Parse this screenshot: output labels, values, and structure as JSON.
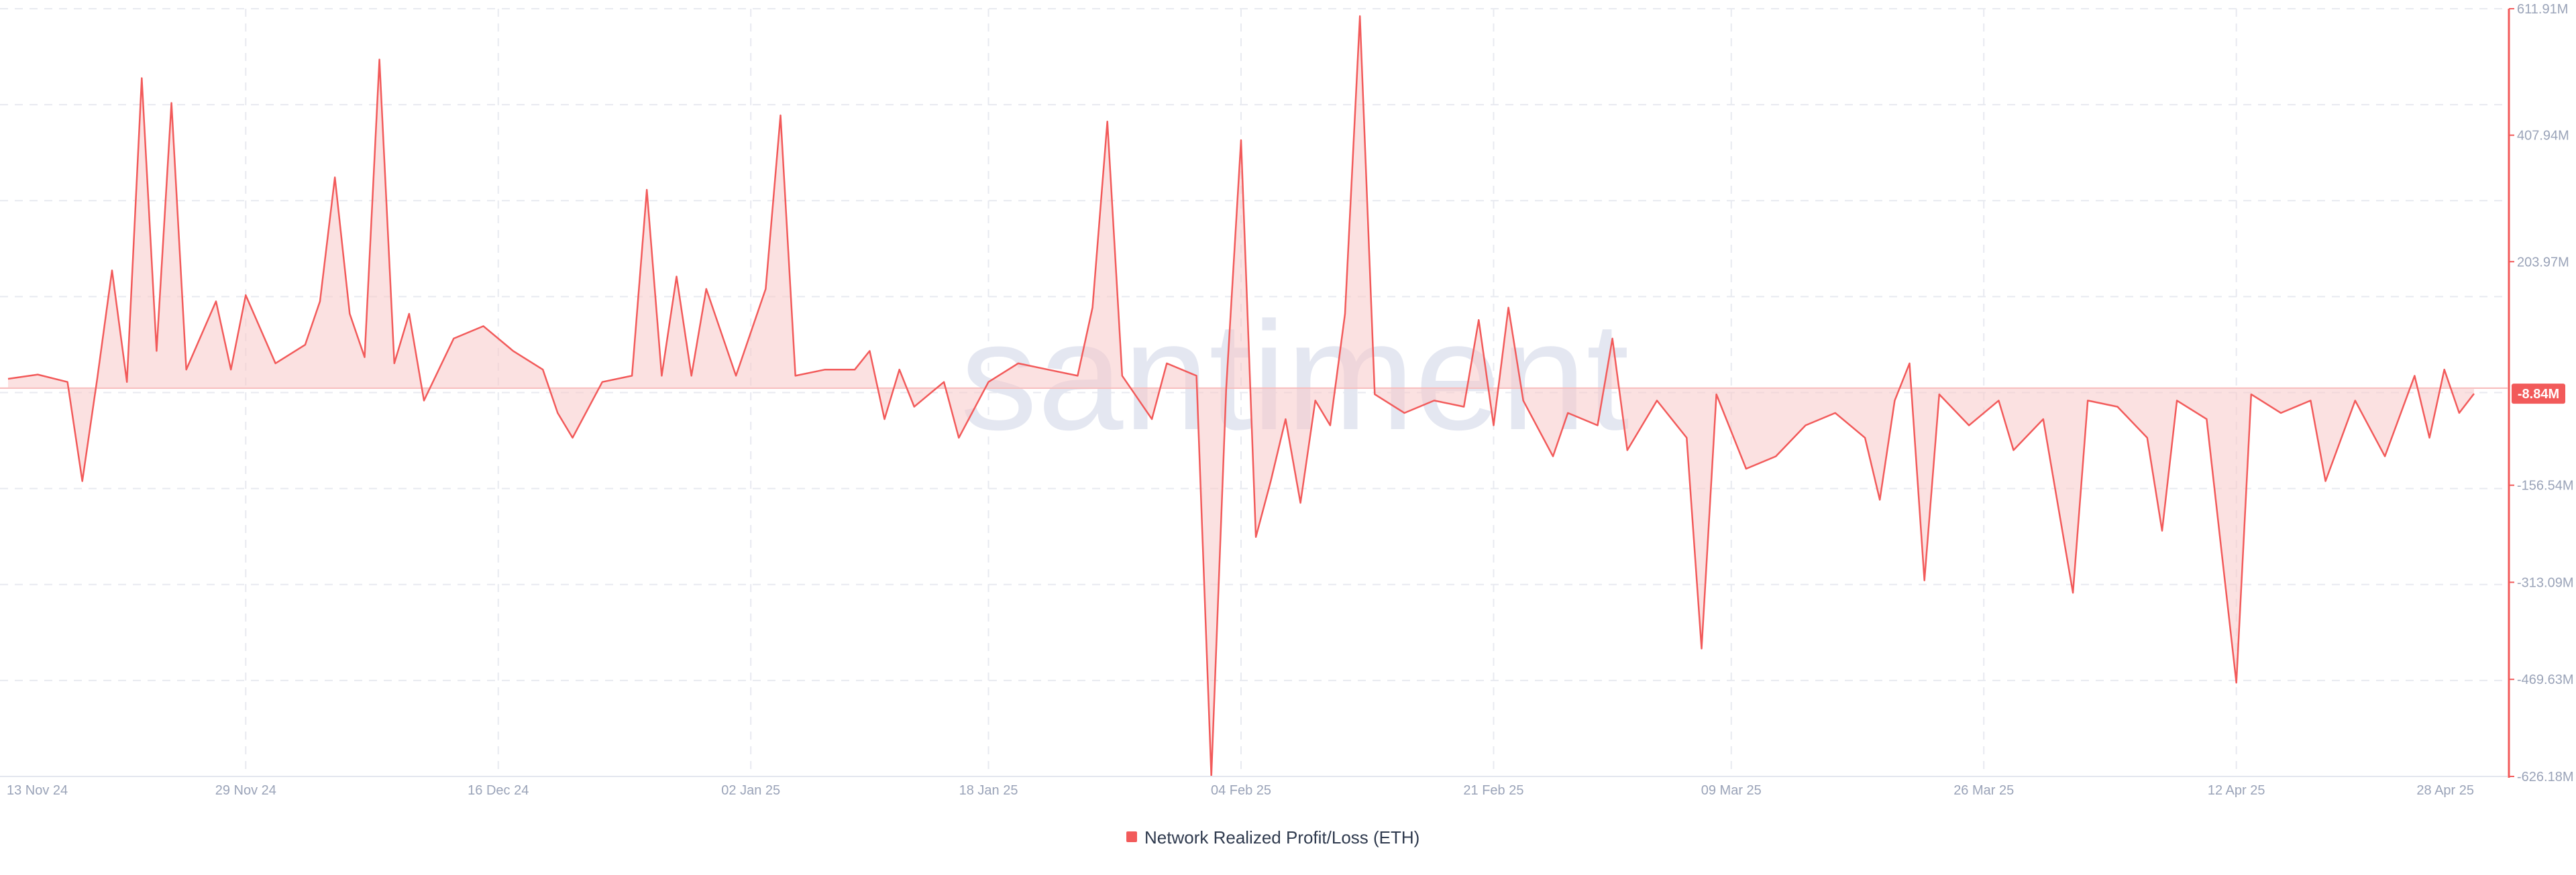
{
  "chart_data": {
    "type": "area",
    "watermark": "santiment",
    "x_range": [
      "2024-11-13",
      "2025-04-28"
    ],
    "x_ticks": [
      "13 Nov 24",
      "29 Nov 24",
      "16 Dec 24",
      "02 Jan 25",
      "18 Jan 25",
      "04 Feb 25",
      "21 Feb 25",
      "09 Mar 25",
      "26 Mar 25",
      "12 Apr 25",
      "28 Apr 25"
    ],
    "y_ticks": [
      "611.91M",
      "407.94M",
      "203.97M",
      "-156.54M",
      "-313.09M",
      "-469.63M",
      "-626.18M"
    ],
    "ylim": [
      -626.18,
      611.91
    ],
    "y_unit": "M",
    "y_axis_side": "right",
    "grid": true,
    "last_value": -8.84,
    "last_value_label": "-8.84M",
    "legend_position": "bottom-center",
    "series": [
      {
        "name": "Network Realized Profit/Loss (ETH)",
        "color": "#f25a5a",
        "fill_color": "#f7c9c9",
        "points": [
          [
            "2024-11-13",
            15
          ],
          [
            "2024-11-15",
            22
          ],
          [
            "2024-11-17",
            10
          ],
          [
            "2024-11-18",
            -150
          ],
          [
            "2024-11-19",
            15
          ],
          [
            "2024-11-20",
            190
          ],
          [
            "2024-11-21",
            10
          ],
          [
            "2024-11-22",
            500
          ],
          [
            "2024-11-23",
            60
          ],
          [
            "2024-11-24",
            460
          ],
          [
            "2024-11-25",
            30
          ],
          [
            "2024-11-27",
            140
          ],
          [
            "2024-11-28",
            30
          ],
          [
            "2024-11-29",
            150
          ],
          [
            "2024-12-01",
            40
          ],
          [
            "2024-12-03",
            70
          ],
          [
            "2024-12-04",
            140
          ],
          [
            "2024-12-05",
            340
          ],
          [
            "2024-12-06",
            120
          ],
          [
            "2024-12-07",
            50
          ],
          [
            "2024-12-08",
            530
          ],
          [
            "2024-12-09",
            40
          ],
          [
            "2024-12-10",
            120
          ],
          [
            "2024-12-11",
            -20
          ],
          [
            "2024-12-13",
            80
          ],
          [
            "2024-12-15",
            100
          ],
          [
            "2024-12-17",
            60
          ],
          [
            "2024-12-19",
            30
          ],
          [
            "2024-12-20",
            -40
          ],
          [
            "2024-12-21",
            -80
          ],
          [
            "2024-12-23",
            10
          ],
          [
            "2024-12-25",
            20
          ],
          [
            "2024-12-26",
            320
          ],
          [
            "2024-12-27",
            20
          ],
          [
            "2024-12-28",
            180
          ],
          [
            "2024-12-29",
            20
          ],
          [
            "2024-12-30",
            160
          ],
          [
            "2025-01-01",
            20
          ],
          [
            "2025-01-02",
            90
          ],
          [
            "2025-01-03",
            160
          ],
          [
            "2025-01-04",
            440
          ],
          [
            "2025-01-05",
            20
          ],
          [
            "2025-01-07",
            30
          ],
          [
            "2025-01-09",
            30
          ],
          [
            "2025-01-10",
            60
          ],
          [
            "2025-01-11",
            -50
          ],
          [
            "2025-01-12",
            30
          ],
          [
            "2025-01-13",
            -30
          ],
          [
            "2025-01-15",
            10
          ],
          [
            "2025-01-16",
            -80
          ],
          [
            "2025-01-18",
            10
          ],
          [
            "2025-01-20",
            40
          ],
          [
            "2025-01-22",
            30
          ],
          [
            "2025-01-24",
            20
          ],
          [
            "2025-01-25",
            130
          ],
          [
            "2025-01-26",
            430
          ],
          [
            "2025-01-27",
            20
          ],
          [
            "2025-01-29",
            -50
          ],
          [
            "2025-01-30",
            40
          ],
          [
            "2025-02-01",
            20
          ],
          [
            "2025-02-02",
            -626
          ],
          [
            "2025-02-03",
            0
          ],
          [
            "2025-02-04",
            400
          ],
          [
            "2025-02-05",
            -240
          ],
          [
            "2025-02-06",
            -150
          ],
          [
            "2025-02-07",
            -50
          ],
          [
            "2025-02-08",
            -185
          ],
          [
            "2025-02-09",
            -20
          ],
          [
            "2025-02-10",
            -60
          ],
          [
            "2025-02-11",
            120
          ],
          [
            "2025-02-12",
            600
          ],
          [
            "2025-02-13",
            -10
          ],
          [
            "2025-02-15",
            -40
          ],
          [
            "2025-02-17",
            -20
          ],
          [
            "2025-02-19",
            -30
          ],
          [
            "2025-02-20",
            110
          ],
          [
            "2025-02-21",
            -60
          ],
          [
            "2025-02-22",
            130
          ],
          [
            "2025-02-23",
            -20
          ],
          [
            "2025-02-25",
            -110
          ],
          [
            "2025-02-26",
            -40
          ],
          [
            "2025-02-28",
            -60
          ],
          [
            "2025-03-01",
            80
          ],
          [
            "2025-03-02",
            -100
          ],
          [
            "2025-03-04",
            -20
          ],
          [
            "2025-03-06",
            -80
          ],
          [
            "2025-03-07",
            -420
          ],
          [
            "2025-03-08",
            -10
          ],
          [
            "2025-03-10",
            -130
          ],
          [
            "2025-03-12",
            -110
          ],
          [
            "2025-03-14",
            -60
          ],
          [
            "2025-03-16",
            -40
          ],
          [
            "2025-03-18",
            -80
          ],
          [
            "2025-03-19",
            -180
          ],
          [
            "2025-03-20",
            -20
          ],
          [
            "2025-03-21",
            40
          ],
          [
            "2025-03-22",
            -310
          ],
          [
            "2025-03-23",
            -10
          ],
          [
            "2025-03-25",
            -60
          ],
          [
            "2025-03-27",
            -20
          ],
          [
            "2025-03-28",
            -100
          ],
          [
            "2025-03-30",
            -50
          ],
          [
            "2025-04-01",
            -330
          ],
          [
            "2025-04-02",
            -20
          ],
          [
            "2025-04-04",
            -30
          ],
          [
            "2025-04-06",
            -80
          ],
          [
            "2025-04-07",
            -230
          ],
          [
            "2025-04-08",
            -20
          ],
          [
            "2025-04-10",
            -50
          ],
          [
            "2025-04-12",
            -475
          ],
          [
            "2025-04-13",
            -10
          ],
          [
            "2025-04-15",
            -40
          ],
          [
            "2025-04-17",
            -20
          ],
          [
            "2025-04-18",
            -150
          ],
          [
            "2025-04-20",
            -20
          ],
          [
            "2025-04-22",
            -110
          ],
          [
            "2025-04-24",
            20
          ],
          [
            "2025-04-25",
            -80
          ],
          [
            "2025-04-26",
            30
          ],
          [
            "2025-04-27",
            -40
          ],
          [
            "2025-04-28",
            -8.84
          ]
        ]
      }
    ]
  }
}
